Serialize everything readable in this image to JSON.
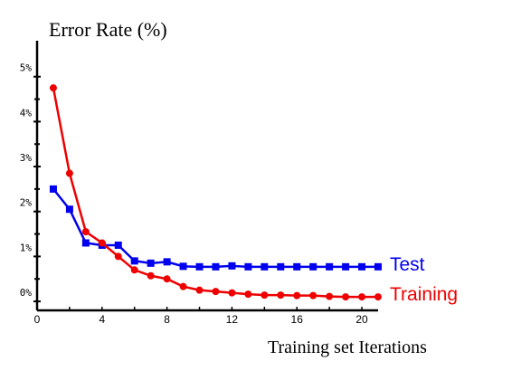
{
  "chart_data": {
    "type": "line",
    "title": "Error Rate (%)",
    "xlabel": "Training set Iterations",
    "ylabel": "",
    "xlim": [
      0,
      21
    ],
    "ylim": [
      -0.2,
      5.8
    ],
    "x_ticks": [
      0,
      4,
      8,
      12,
      16,
      20
    ],
    "y_ticks": [
      0,
      1,
      2,
      3,
      4,
      5
    ],
    "y_tick_labels": [
      "0%",
      "1%",
      "2%",
      "3%",
      "4%",
      "5%"
    ],
    "grid": false,
    "legend": "right-of-line-end",
    "series": [
      {
        "name": "Test",
        "color": "#0000ee",
        "marker": "square",
        "x": [
          1,
          2,
          3,
          4,
          5,
          6,
          7,
          8,
          9,
          10,
          11,
          12,
          13,
          14,
          15,
          16,
          17,
          18,
          19,
          20,
          21
        ],
        "values": [
          2.5,
          2.05,
          1.3,
          1.25,
          1.25,
          0.9,
          0.85,
          0.88,
          0.78,
          0.77,
          0.77,
          0.79,
          0.77,
          0.77,
          0.77,
          0.77,
          0.77,
          0.77,
          0.77,
          0.77,
          0.77
        ]
      },
      {
        "name": "Training",
        "color": "#ee0000",
        "marker": "circle",
        "x": [
          1,
          2,
          3,
          4,
          5,
          6,
          7,
          8,
          9,
          10,
          11,
          12,
          13,
          14,
          15,
          16,
          17,
          18,
          19,
          20,
          21
        ],
        "values": [
          4.75,
          2.85,
          1.55,
          1.3,
          1.0,
          0.7,
          0.57,
          0.5,
          0.33,
          0.25,
          0.22,
          0.19,
          0.16,
          0.14,
          0.14,
          0.13,
          0.13,
          0.11,
          0.1,
          0.1,
          0.1
        ]
      }
    ]
  }
}
